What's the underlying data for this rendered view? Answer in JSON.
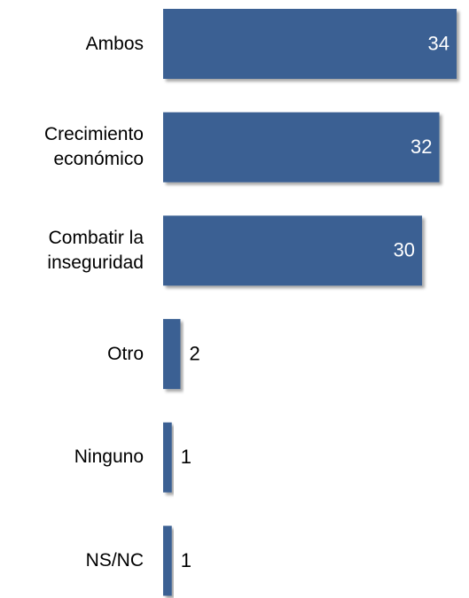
{
  "chart_data": {
    "type": "bar",
    "orientation": "horizontal",
    "categories": [
      "Ambos",
      "Crecimiento económico",
      "Combatir la inseguridad",
      "Otro",
      "Ninguno",
      "NS/NC"
    ],
    "values": [
      34,
      32,
      30,
      2,
      1,
      1
    ],
    "color": "#3b6193"
  }
}
